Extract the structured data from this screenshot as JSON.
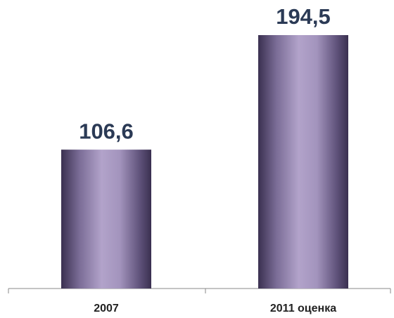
{
  "chart_data": {
    "type": "bar",
    "categories": [
      "2007",
      "2011 оценка"
    ],
    "values": [
      106.6,
      194.5
    ],
    "value_labels": [
      "106,6",
      "194,5"
    ]
  }
}
